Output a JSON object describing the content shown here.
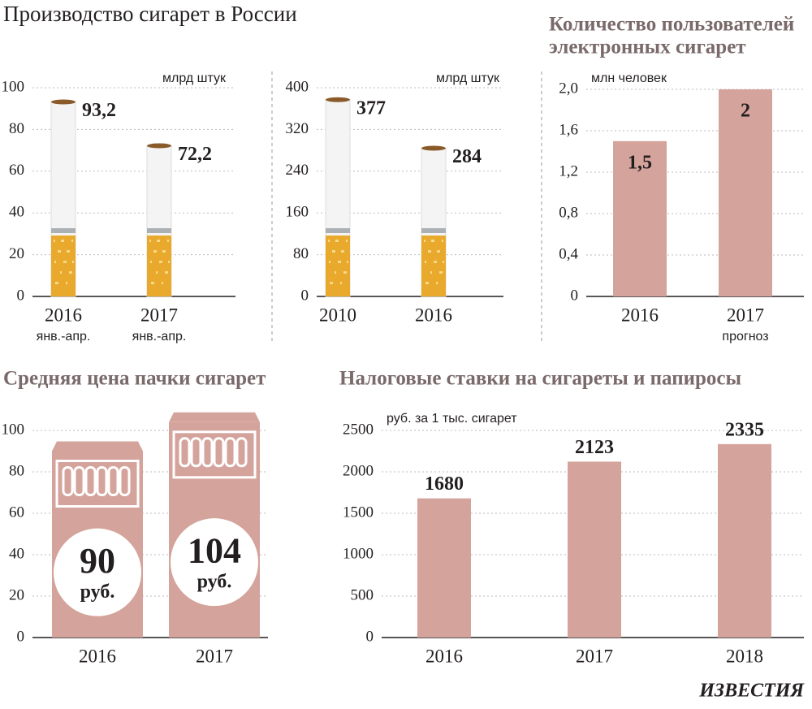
{
  "title": "Производство сигарет в России",
  "source": "ИЗВЕСТИЯ",
  "chart_data": [
    {
      "type": "cigarette",
      "unit": "млрд штук",
      "categories": [
        "2016",
        "2017"
      ],
      "category_notes": [
        "янв.-апр.",
        "янв.-апр."
      ],
      "values": [
        93.2,
        72.2
      ],
      "value_labels": [
        "93,2",
        "72,2"
      ],
      "ylim": [
        0,
        100
      ],
      "yticks": [
        0,
        20,
        40,
        60,
        80,
        100
      ],
      "grid": true
    },
    {
      "type": "cigarette",
      "unit": "млрд штук",
      "categories": [
        "2010",
        "2016"
      ],
      "values": [
        377,
        284
      ],
      "ylim": [
        0,
        400
      ],
      "yticks": [
        0,
        80,
        160,
        240,
        320,
        400
      ],
      "grid": true
    },
    {
      "type": "bar",
      "title": [
        "Количество пользователей",
        "электронных сигарет"
      ],
      "unit": "млн человек",
      "categories": [
        "2016",
        "2017"
      ],
      "category_notes": [
        null,
        "прогноз"
      ],
      "values": [
        1.5,
        2
      ],
      "value_labels": [
        "1,5",
        "2"
      ],
      "color": "#d4a39b",
      "ylim": [
        0,
        2
      ],
      "yticks": [
        0,
        {
          "value": 0.4,
          "label": "0,4"
        },
        {
          "value": 0.8,
          "label": "0,8"
        },
        {
          "value": 1.2,
          "label": "1,2"
        },
        {
          "value": 1.6,
          "label": "1,6"
        },
        {
          "value": 2,
          "label": "2,0"
        }
      ],
      "grid": true
    },
    {
      "type": "pack",
      "title": "Средняя цена пачки сигарет",
      "value_unit": "руб.",
      "categories": [
        "2016",
        "2017"
      ],
      "values": [
        90,
        104
      ],
      "color": "#d4a39b",
      "ylim": [
        0,
        100
      ],
      "yticks": [
        0,
        20,
        40,
        60,
        80,
        100
      ],
      "grid": true
    },
    {
      "type": "bar",
      "title": "Налоговые ставки на сигареты и папиросы",
      "unit": "руб. за 1 тыс. сигарет",
      "categories": [
        "2016",
        "2017",
        "2018"
      ],
      "values": [
        1680,
        2123,
        2335
      ],
      "color": "#d4a39b",
      "ylim": [
        0,
        2500
      ],
      "yticks": [
        0,
        500,
        1000,
        1500,
        2000,
        2500
      ],
      "grid": true
    }
  ]
}
